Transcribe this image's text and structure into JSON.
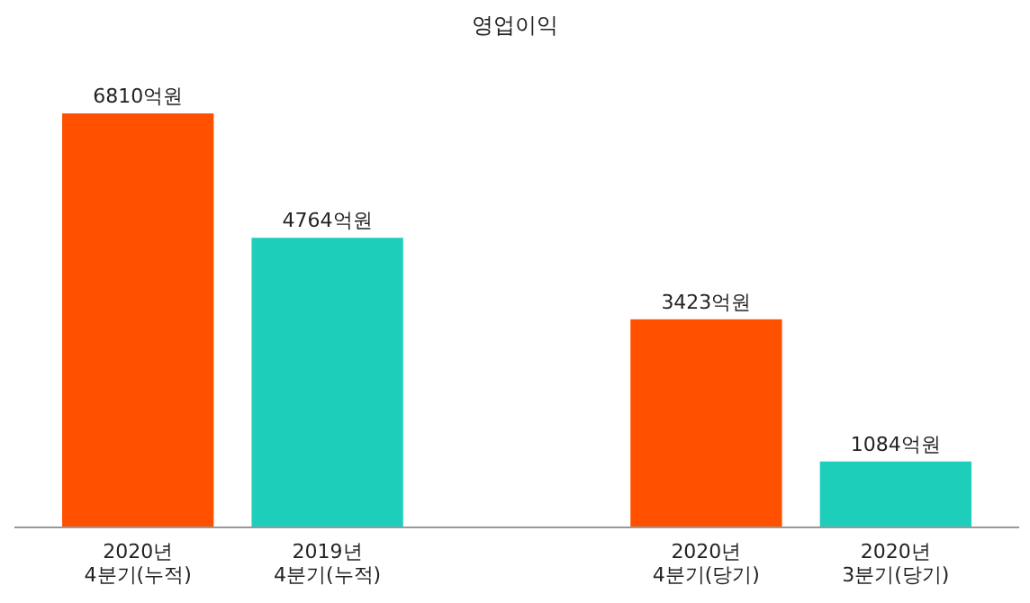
{
  "chart_data": {
    "type": "bar",
    "title": "영업이익",
    "categories": [
      "2020년\n4분기(누적)",
      "2019년\n4분기(누적)",
      null,
      "2020년\n4분기(당기)",
      "2020년\n3분기(당기)"
    ],
    "values": [
      6810,
      4764,
      null,
      3423,
      1084
    ],
    "value_labels": [
      "6810억원",
      "4764억원",
      null,
      "3423억원",
      "1084억원"
    ],
    "colors": [
      "#ff5000",
      "#1dcfbb",
      null,
      "#ff5000",
      "#1dcfbb"
    ]
  }
}
